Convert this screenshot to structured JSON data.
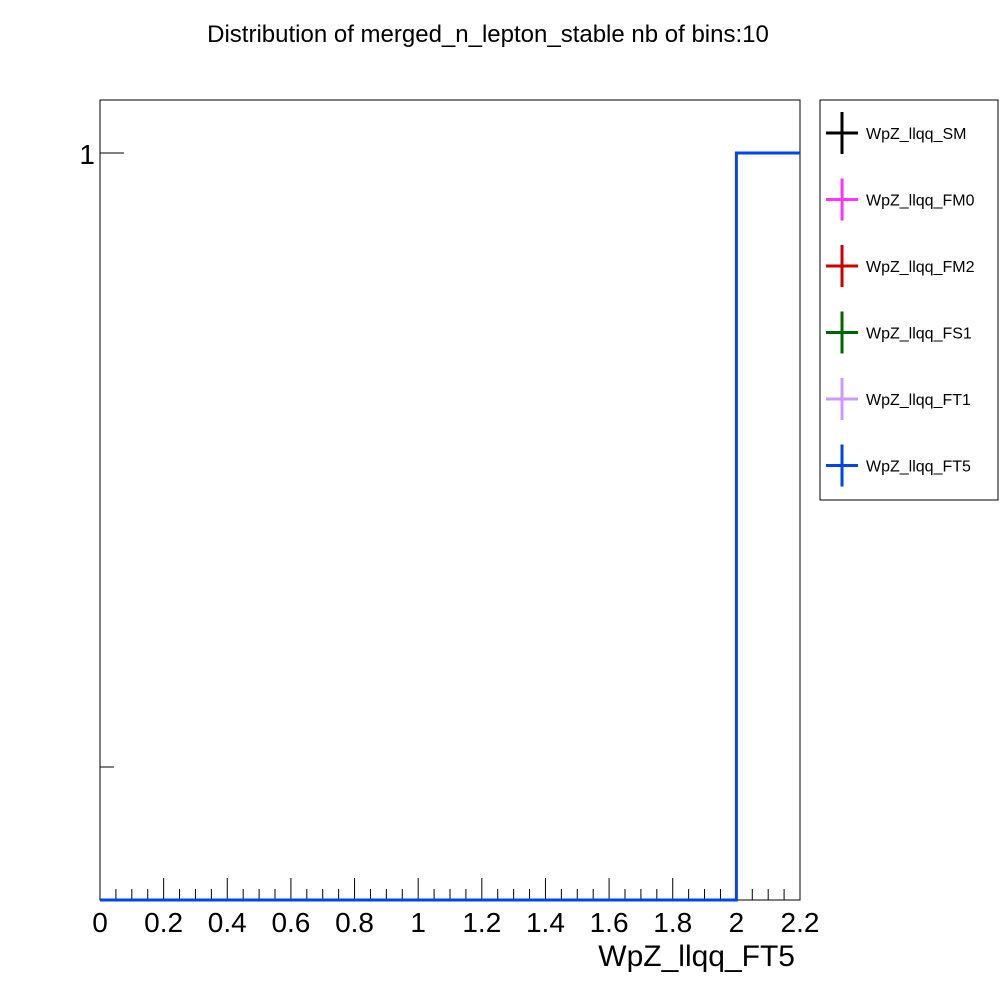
{
  "chart_data": {
    "type": "line",
    "title": "Distribution of merged_n_lepton_stable nb of bins:10",
    "xlabel": "WpZ_llqq_FT5",
    "ylabel": "",
    "xlim": [
      0,
      2.2
    ],
    "y_scale": "log",
    "x_ticks": [
      "0",
      "0.2",
      "0.4",
      "0.6",
      "0.8",
      "1",
      "1.2",
      "1.4",
      "1.6",
      "1.8",
      "2",
      "2.2"
    ],
    "y_ticks": [
      "1"
    ],
    "grid": false,
    "legend_position": "right",
    "series": [
      {
        "name": "WpZ_llqq_SM",
        "color": "#000000"
      },
      {
        "name": "WpZ_llqq_FM0",
        "color": "#ff33ff"
      },
      {
        "name": "WpZ_llqq_FM2",
        "color": "#cc0000"
      },
      {
        "name": "WpZ_llqq_FS1",
        "color": "#006600"
      },
      {
        "name": "WpZ_llqq_FT1",
        "color": "#cc99ff"
      },
      {
        "name": "WpZ_llqq_FT5",
        "color": "#0044ee",
        "bins": [
          {
            "x": 0.0,
            "y": 0
          },
          {
            "x": 0.2,
            "y": 0
          },
          {
            "x": 0.4,
            "y": 0
          },
          {
            "x": 0.6,
            "y": 0
          },
          {
            "x": 0.8,
            "y": 0
          },
          {
            "x": 1.0,
            "y": 0
          },
          {
            "x": 1.2,
            "y": 0
          },
          {
            "x": 1.4,
            "y": 0
          },
          {
            "x": 1.6,
            "y": 0
          },
          {
            "x": 1.8,
            "y": 0
          },
          {
            "x": 2.0,
            "y": 1
          }
        ]
      }
    ]
  }
}
